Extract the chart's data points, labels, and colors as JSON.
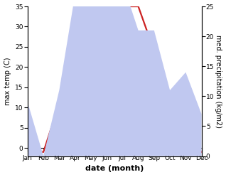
{
  "months": [
    "Jan",
    "Feb",
    "Mar",
    "Apr",
    "May",
    "Jun",
    "Jul",
    "Aug",
    "Sep",
    "Oct",
    "Nov",
    "Dec"
  ],
  "temperature": [
    -1,
    -1,
    11,
    30,
    33,
    32,
    35,
    35,
    24,
    13,
    3,
    -1
  ],
  "precipitation": [
    9,
    0,
    11,
    27,
    33,
    28,
    29,
    21,
    21,
    11,
    14,
    7
  ],
  "temp_color": "#cc2222",
  "precip_fill_color": "#c0c8f0",
  "temp_ylim": [
    -2,
    35
  ],
  "precip_ylim": [
    0,
    25
  ],
  "left_yticks": [
    0,
    5,
    10,
    15,
    20,
    25,
    30,
    35
  ],
  "right_yticks": [
    0,
    5,
    10,
    15,
    20,
    25
  ],
  "xlabel": "date (month)",
  "ylabel_left": "max temp (C)",
  "ylabel_right": "med. precipitation (kg/m2)",
  "axis_fontsize": 7,
  "tick_fontsize": 6.5,
  "line_width": 1.6,
  "xlabel_fontsize": 8
}
